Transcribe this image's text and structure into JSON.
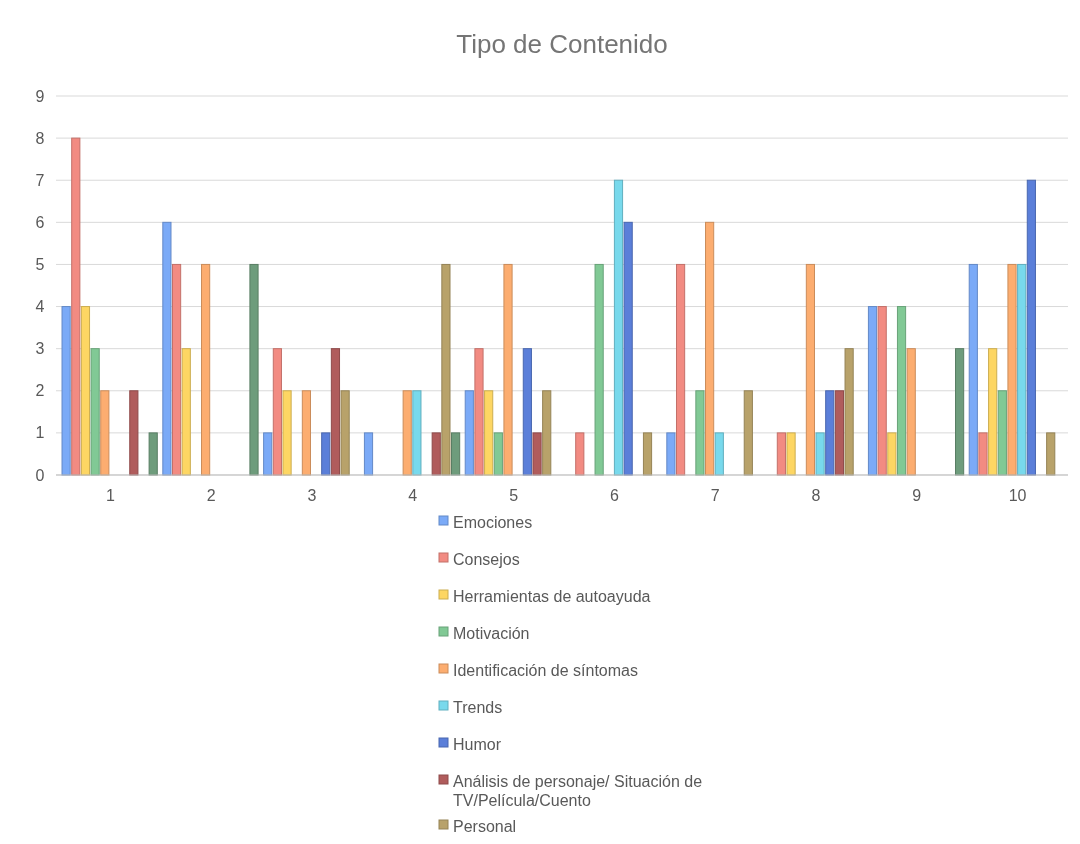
{
  "chart_data": {
    "type": "bar",
    "title": "Tipo de Contenido",
    "categories": [
      "1",
      "2",
      "3",
      "4",
      "5",
      "6",
      "7",
      "8",
      "9",
      "10"
    ],
    "series": [
      {
        "name": "Emociones",
        "color": "#7baaf7",
        "values": [
          4,
          6,
          1,
          1,
          2,
          0,
          1,
          0,
          4,
          5
        ]
      },
      {
        "name": "Consejos",
        "color": "#f28b82",
        "values": [
          8,
          5,
          3,
          0,
          3,
          1,
          5,
          1,
          4,
          1
        ]
      },
      {
        "name": "Herramientas de autoayuda",
        "color": "#fdd663",
        "values": [
          4,
          3,
          2,
          0,
          2,
          0,
          0,
          1,
          1,
          3
        ]
      },
      {
        "name": "Motivación",
        "color": "#81c995",
        "values": [
          3,
          0,
          0,
          0,
          1,
          5,
          2,
          0,
          4,
          2
        ]
      },
      {
        "name": "Identificación de síntomas",
        "color": "#fcad70",
        "values": [
          2,
          5,
          2,
          2,
          5,
          0,
          6,
          5,
          3,
          5
        ]
      },
      {
        "name": "Trends",
        "color": "#78d9ec",
        "values": [
          0,
          0,
          0,
          2,
          0,
          7,
          1,
          1,
          0,
          5
        ]
      },
      {
        "name": "Humor",
        "color": "#5b7fd9",
        "values": [
          0,
          0,
          1,
          0,
          3,
          6,
          0,
          2,
          0,
          7
        ]
      },
      {
        "name": "Análisis de personaje/ Situación de TV/Película/Cuento",
        "color": "#b05c5c",
        "values": [
          2,
          0,
          3,
          1,
          1,
          0,
          0,
          2,
          0,
          0
        ]
      },
      {
        "name": "Personal",
        "color": "#b8a26a",
        "values": [
          0,
          0,
          2,
          5,
          2,
          1,
          2,
          3,
          0,
          1
        ]
      },
      {
        "color": "#6e9c7c",
        "values": [
          1,
          5,
          0,
          1,
          0,
          0,
          0,
          0,
          3,
          0
        ]
      }
    ],
    "ylim": [
      0,
      9
    ],
    "yticks": [
      0,
      1,
      2,
      3,
      4,
      5,
      6,
      7,
      8,
      9
    ],
    "grid": "y",
    "legend": "bottom"
  }
}
